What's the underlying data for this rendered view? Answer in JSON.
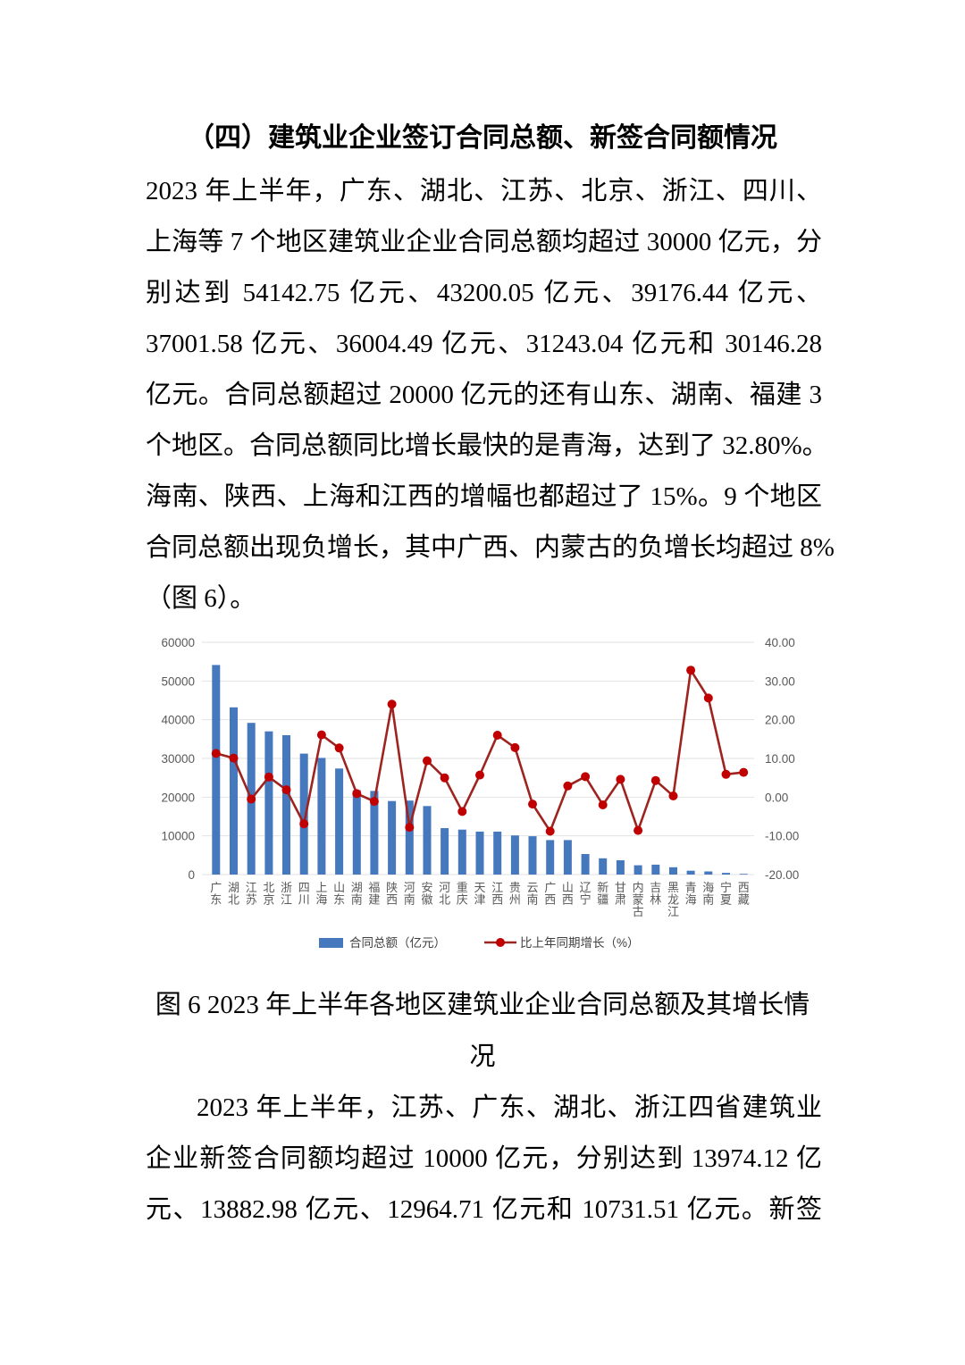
{
  "heading": "（四）建筑业企业签订合同总额、新签合同额情况",
  "paragraph1": {
    "lines": [
      "2023 年上半年，广东、湖北、江苏、北京、浙江、四川、",
      "上海等 7 个地区建筑业企业合同总额均超过 30000 亿元，分",
      "别达到 54142.75 亿元、43200.05 亿元、39176.44 亿元、",
      "37001.58 亿元、36004.49 亿元、31243.04 亿元和 30146.28",
      "亿元。合同总额超过 20000 亿元的还有山东、湖南、福建 3",
      "个地区。合同总额同比增长最快的是青海，达到了 32.80%。",
      "海南、陕西、上海和江西的增幅也都超过了 15%。9 个地区",
      "合同总额出现负增长，其中广西、内蒙古的负增长均超过 8%",
      "（图 6）。"
    ]
  },
  "figure": {
    "caption_line1": "图 6 2023 年上半年各地区建筑业企业合同总额及其增长情",
    "caption_line2": "况"
  },
  "paragraph2": {
    "lines": [
      "2023 年上半年，江苏、广东、湖北、浙江四省建筑业",
      "企业新签合同额均超过 10000 亿元，分别达到 13974.12 亿",
      "元、13882.98 亿元、12964.71 亿元和 10731.51 亿元。新签"
    ]
  },
  "chart_data": {
    "type": "bar",
    "subtype": "bar+line dual-axis combo",
    "title": "",
    "categories": [
      "广东",
      "湖北",
      "江苏",
      "北京",
      "浙江",
      "四川",
      "上海",
      "山东",
      "湖南",
      "福建",
      "陕西",
      "河南",
      "安徽",
      "河北",
      "重庆",
      "天津",
      "江西",
      "贵州",
      "云南",
      "广西",
      "山西",
      "辽宁",
      "新疆",
      "甘肃",
      "内蒙古",
      "吉林",
      "黑龙江",
      "青海",
      "海南",
      "宁夏",
      "西藏"
    ],
    "series": [
      {
        "name": "合同总额（亿元）",
        "type": "bar",
        "axis": "left",
        "color": "#4678BE",
        "values": [
          54142.75,
          43200.05,
          39176.44,
          37001.58,
          36004.49,
          31243.04,
          30146.28,
          27400,
          21800,
          21600,
          19000,
          19100,
          17700,
          12000,
          11600,
          11100,
          11100,
          10100,
          9900,
          8900,
          8900,
          5300,
          4200,
          3700,
          2400,
          2550,
          1900,
          1000,
          800,
          450,
          180
        ]
      },
      {
        "name": "比上年同期增长（%）",
        "type": "line",
        "axis": "right",
        "color": "#9E2420",
        "marker_color": "#C00000",
        "values": [
          11.3,
          10.1,
          -0.5,
          5.2,
          1.9,
          -6.9,
          16.1,
          12.7,
          0.9,
          -1.1,
          24.0,
          -7.8,
          9.4,
          5.0,
          -3.7,
          5.7,
          16.0,
          12.8,
          -1.8,
          -8.8,
          2.9,
          5.3,
          -2.0,
          4.6,
          -8.6,
          4.3,
          0.3,
          32.8,
          25.6,
          5.9,
          6.4
        ]
      }
    ],
    "left_axis": {
      "min": 0,
      "max": 60000,
      "tick_step": 10000,
      "tick_labels": [
        "0",
        "10000",
        "20000",
        "30000",
        "40000",
        "50000",
        "60000"
      ]
    },
    "right_axis": {
      "min": -20,
      "max": 40,
      "tick_step": 10,
      "tick_labels": [
        "-20.00",
        "-10.00",
        "0.00",
        "10.00",
        "20.00",
        "30.00",
        "40.00"
      ]
    },
    "grid": true,
    "legend_position": "bottom",
    "colors": {
      "gridline": "#E2E2E2",
      "axis_label": "#595959",
      "legend_text": "#404040"
    }
  }
}
